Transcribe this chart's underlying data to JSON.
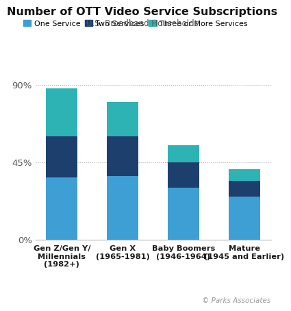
{
  "title": "Number of OTT Video Service Subscriptions",
  "subtitle": "U.S. Broadband Households",
  "categories": [
    "Gen Z/Gen Y/\nMillennials\n(1982+)",
    "Gen X\n(1965-1981)",
    "Baby Boomers\n(1946-1964)",
    "Mature\n(1945 and Earlier)"
  ],
  "one_service": [
    36,
    37,
    30,
    25
  ],
  "two_services": [
    24,
    23,
    15,
    9
  ],
  "three_or_more": [
    28,
    20,
    10,
    7
  ],
  "colors": {
    "one_service": "#3d9fd3",
    "two_services": "#1c3f6e",
    "three_or_more": "#2db3b3"
  },
  "legend_labels": [
    "One Service",
    "Two Services",
    "Three or More Services"
  ],
  "yticks": [
    0,
    45,
    90
  ],
  "ytick_labels": [
    "0%",
    "45%",
    "90%"
  ],
  "ylim": [
    0,
    97
  ],
  "copyright": "© Parks Associates",
  "background_color": "#ffffff"
}
